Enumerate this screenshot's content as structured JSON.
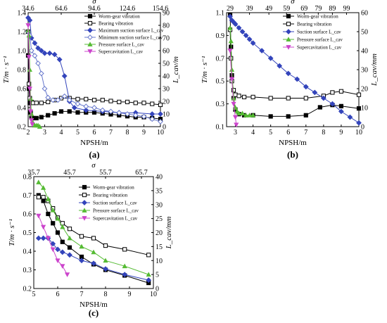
{
  "chart_data": [
    {
      "type": "line",
      "panel_label": "(a)",
      "xlabel": "NPSH/m",
      "ylabel_left": "T/m · s⁻¹",
      "ylabel_right": "L_cav/m",
      "top_axis_label": "σ",
      "xlim": [
        2,
        10
      ],
      "ylim_left": [
        0.2,
        1.4
      ],
      "ylim_right": [
        0,
        90
      ],
      "x_ticks": [
        2,
        3,
        4,
        5,
        6,
        7,
        8,
        9,
        10
      ],
      "y_left_ticks": [
        0.2,
        0.4,
        0.6,
        0.8,
        1.0,
        1.2,
        1.4
      ],
      "y_right_ticks": [
        0,
        10,
        20,
        30,
        40,
        50,
        60,
        70,
        80,
        90
      ],
      "top_ticks": [
        {
          "x": 2.0,
          "label": "34.6"
        },
        {
          "x": 4.0,
          "label": "64.6"
        },
        {
          "x": 6.0,
          "label": "94.6"
        },
        {
          "x": 8.0,
          "label": "124.6"
        },
        {
          "x": 10.0,
          "label": "154.6"
        }
      ],
      "legend_position": "top-right",
      "series": [
        {
          "name": "Worm-gear vibration",
          "axis": "left",
          "color": "#000000",
          "marker": "square-filled",
          "x": [
            2.0,
            2.05,
            2.1,
            2.15,
            2.2,
            2.3,
            2.5,
            2.8,
            3.2,
            3.6,
            4.0,
            4.5,
            5.0,
            5.5,
            6.0,
            6.5,
            7.0,
            7.5,
            8.0,
            8.5,
            9.0,
            9.5,
            10.0
          ],
          "y": [
            0.95,
            0.6,
            0.45,
            0.35,
            0.3,
            0.29,
            0.29,
            0.3,
            0.32,
            0.34,
            0.36,
            0.36,
            0.35,
            0.35,
            0.35,
            0.34,
            0.33,
            0.32,
            0.31,
            0.3,
            0.3,
            0.29,
            0.28
          ]
        },
        {
          "name": "Bearing vibration",
          "axis": "left",
          "color": "#000000",
          "marker": "square-open",
          "x": [
            2.0,
            2.05,
            2.1,
            2.2,
            2.3,
            2.5,
            2.8,
            3.2,
            3.6,
            4.0,
            4.5,
            5.0,
            5.5,
            6.0,
            6.5,
            7.0,
            7.5,
            8.0,
            8.5,
            9.0,
            9.5,
            10.0
          ],
          "y": [
            1.2,
            0.65,
            0.5,
            0.46,
            0.45,
            0.45,
            0.45,
            0.46,
            0.48,
            0.5,
            0.5,
            0.49,
            0.49,
            0.48,
            0.48,
            0.47,
            0.46,
            0.46,
            0.45,
            0.45,
            0.44,
            0.43
          ]
        },
        {
          "name": "Maximum suction surface L_cav",
          "axis": "right",
          "color": "#3344bb",
          "marker": "diamond-filled",
          "x": [
            2.0,
            2.1,
            2.2,
            2.4,
            2.6,
            2.8,
            3.0,
            3.3,
            3.6,
            3.9,
            4.2,
            4.5,
            4.8,
            5.5,
            6.5,
            7.5,
            8.5,
            9.5,
            10.0
          ],
          "y": [
            86,
            84,
            70,
            66,
            62,
            60,
            58,
            58,
            57,
            53,
            40,
            20,
            15,
            13,
            12,
            11,
            11,
            10,
            10
          ]
        },
        {
          "name": "Minimum suction surface L_cav",
          "axis": "right",
          "color": "#6677cc",
          "marker": "diamond-open",
          "x": [
            2.0,
            2.1,
            2.2,
            2.4,
            2.6,
            2.8,
            3.0,
            3.2,
            3.5,
            3.8,
            4.2,
            4.5,
            5.0,
            5.5,
            6.0,
            6.5,
            7.0,
            7.5,
            8.0,
            8.5,
            9.0,
            9.5,
            10.0
          ],
          "y": [
            75,
            72,
            60,
            56,
            50,
            42,
            30,
            23,
            21,
            21,
            24,
            21,
            18,
            16,
            15,
            13,
            12,
            11,
            10,
            9,
            8,
            6,
            4
          ]
        },
        {
          "name": "Pressure surface L_cav",
          "axis": "right",
          "color": "#55bb33",
          "marker": "triangle-up",
          "x": [
            2.0,
            2.05,
            2.1,
            2.15,
            2.2,
            2.3,
            2.4,
            2.5,
            2.6,
            2.7
          ],
          "y": [
            76,
            72,
            45,
            22,
            10,
            3,
            1,
            1,
            1,
            0
          ]
        },
        {
          "name": "Supercavitation L_cav",
          "axis": "right",
          "color": "#cc44cc",
          "marker": "triangle-down",
          "x": [
            2.0,
            2.05,
            2.1,
            2.15,
            2.2,
            2.25
          ],
          "y": [
            80,
            55,
            30,
            12,
            5,
            2
          ]
        }
      ]
    },
    {
      "type": "line",
      "panel_label": "(b)",
      "xlabel": "NPSH/m",
      "ylabel_left": "T/m · s⁻¹",
      "ylabel_right": "L_cav/mm",
      "top_axis_label": "σ",
      "xlim": [
        2.5,
        10
      ],
      "ylim_left": [
        0.1,
        1.1
      ],
      "ylim_right": [
        0,
        60
      ],
      "x_ticks": [
        3,
        4,
        5,
        6,
        7,
        8,
        9,
        10
      ],
      "y_left_ticks": [
        0.1,
        0.3,
        0.5,
        0.7,
        0.9,
        1.1
      ],
      "y_right_ticks": [
        0,
        10,
        20,
        30,
        40,
        50,
        60
      ],
      "top_ticks": [
        {
          "x": 2.7,
          "label": "29"
        },
        {
          "x": 3.8,
          "label": "39"
        },
        {
          "x": 4.9,
          "label": "49"
        },
        {
          "x": 5.9,
          "label": "59"
        },
        {
          "x": 6.9,
          "label": "69"
        },
        {
          "x": 7.7,
          "label": "79"
        },
        {
          "x": 8.5,
          "label": "89"
        },
        {
          "x": 9.3,
          "label": "99"
        }
      ],
      "legend_position": "top-right",
      "series": [
        {
          "name": "Worm-gear vibration",
          "axis": "left",
          "color": "#000000",
          "marker": "square-filled",
          "x": [
            2.7,
            2.75,
            2.8,
            2.9,
            3.0,
            3.2,
            3.5,
            4.0,
            5.0,
            6.0,
            7.0,
            7.8,
            8.5,
            9.0,
            10.0
          ],
          "y": [
            1.08,
            0.8,
            0.55,
            0.35,
            0.25,
            0.21,
            0.2,
            0.2,
            0.19,
            0.19,
            0.2,
            0.27,
            0.29,
            0.28,
            0.26
          ]
        },
        {
          "name": "Bearing vibration",
          "axis": "left",
          "color": "#000000",
          "marker": "square-open",
          "x": [
            2.7,
            2.75,
            2.8,
            2.9,
            3.0,
            3.2,
            3.5,
            4.0,
            5.0,
            6.0,
            7.0,
            8.0,
            8.5,
            9.0,
            10.0
          ],
          "y": [
            0.95,
            0.7,
            0.5,
            0.42,
            0.38,
            0.37,
            0.36,
            0.36,
            0.35,
            0.35,
            0.35,
            0.37,
            0.4,
            0.41,
            0.38
          ]
        },
        {
          "name": "Suction surface L_cav",
          "axis": "right",
          "color": "#3344bb",
          "marker": "diamond-filled",
          "x": [
            2.7,
            2.8,
            2.9,
            3.0,
            3.2,
            3.4,
            3.6,
            3.8,
            4.0,
            4.5,
            5.0,
            5.5,
            6.0,
            6.5,
            7.0,
            7.5,
            8.0,
            8.5,
            9.0,
            9.5,
            10.0
          ],
          "y": [
            58,
            56,
            55,
            54,
            52,
            50,
            48,
            46,
            44,
            40,
            36,
            32,
            28,
            25,
            21,
            18,
            15,
            12,
            8,
            5,
            2
          ]
        },
        {
          "name": "Pressure surface L_cav",
          "axis": "right",
          "color": "#55bb33",
          "marker": "triangle-up",
          "x": [
            2.7,
            2.75,
            2.8,
            2.9,
            3.0,
            3.1,
            3.2,
            3.4,
            3.6,
            3.8,
            4.0
          ],
          "y": [
            52,
            45,
            30,
            15,
            10,
            8,
            7,
            7,
            6,
            6,
            6
          ]
        },
        {
          "name": "Supercavitation L_cav",
          "axis": "right",
          "color": "#cc44cc",
          "marker": "triangle-down",
          "x": [
            2.7,
            2.8,
            2.9,
            3.0,
            3.05
          ],
          "y": [
            40,
            25,
            12,
            5,
            1
          ]
        }
      ]
    },
    {
      "type": "line",
      "panel_label": "(c)",
      "xlabel": "NPSH/m",
      "ylabel_left": "T/m · s⁻¹",
      "ylabel_right": "L_cav/mm",
      "top_axis_label": "σ",
      "xlim": [
        5,
        10
      ],
      "ylim_left": [
        0.2,
        0.8
      ],
      "ylim_right": [
        0,
        40
      ],
      "x_ticks": [
        5,
        6,
        7,
        8,
        9,
        10
      ],
      "y_left_ticks": [
        0.2,
        0.3,
        0.4,
        0.5,
        0.6,
        0.7,
        0.8
      ],
      "y_right_ticks": [
        0,
        5,
        10,
        15,
        20,
        25,
        30,
        35,
        40
      ],
      "top_ticks": [
        {
          "x": 5.0,
          "label": "35.7"
        },
        {
          "x": 6.5,
          "label": "45.7"
        },
        {
          "x": 8.0,
          "label": "55.7"
        },
        {
          "x": 9.5,
          "label": "65.7"
        }
      ],
      "legend_position": "top-right",
      "series": [
        {
          "name": "Worm-gear vibration",
          "axis": "left",
          "color": "#000000",
          "marker": "square-filled",
          "x": [
            5.2,
            5.4,
            5.6,
            5.8,
            6.0,
            6.2,
            6.5,
            7.0,
            7.5,
            8.0,
            8.8,
            9.8
          ],
          "y": [
            0.7,
            0.67,
            0.6,
            0.55,
            0.5,
            0.45,
            0.42,
            0.37,
            0.33,
            0.3,
            0.27,
            0.23
          ]
        },
        {
          "name": "Bearing vibration",
          "axis": "left",
          "color": "#000000",
          "marker": "square-open",
          "x": [
            5.2,
            5.4,
            5.6,
            5.8,
            6.0,
            6.2,
            6.5,
            7.0,
            7.5,
            8.0,
            8.8,
            9.8
          ],
          "y": [
            0.69,
            0.69,
            0.67,
            0.63,
            0.58,
            0.55,
            0.52,
            0.48,
            0.47,
            0.43,
            0.41,
            0.38
          ]
        },
        {
          "name": "Suction surface L_cav",
          "axis": "right",
          "color": "#3344bb",
          "marker": "diamond-filled",
          "x": [
            5.2,
            5.4,
            5.6,
            5.8,
            6.0,
            6.2,
            6.5,
            7.0,
            7.5,
            8.0,
            8.8,
            9.8
          ],
          "y": [
            18,
            18,
            18,
            16,
            14,
            13,
            12,
            10,
            9,
            7,
            5,
            3
          ]
        },
        {
          "name": "Pressure surface L_cav",
          "axis": "right",
          "color": "#55bb33",
          "marker": "triangle-up",
          "x": [
            5.2,
            5.4,
            5.6,
            5.8,
            6.0,
            6.2,
            6.5,
            7.0,
            7.5,
            8.0,
            8.8,
            9.8
          ],
          "y": [
            38,
            36,
            32,
            28,
            25,
            22,
            18,
            15,
            13,
            10,
            8,
            5
          ]
        },
        {
          "name": "Supercavitation L_cav",
          "axis": "right",
          "color": "#cc44cc",
          "marker": "triangle-down",
          "x": [
            5.2,
            5.4,
            5.6,
            5.8,
            6.0,
            6.2,
            6.4
          ],
          "y": [
            26,
            22,
            18,
            14,
            10,
            8,
            5
          ]
        }
      ]
    }
  ]
}
